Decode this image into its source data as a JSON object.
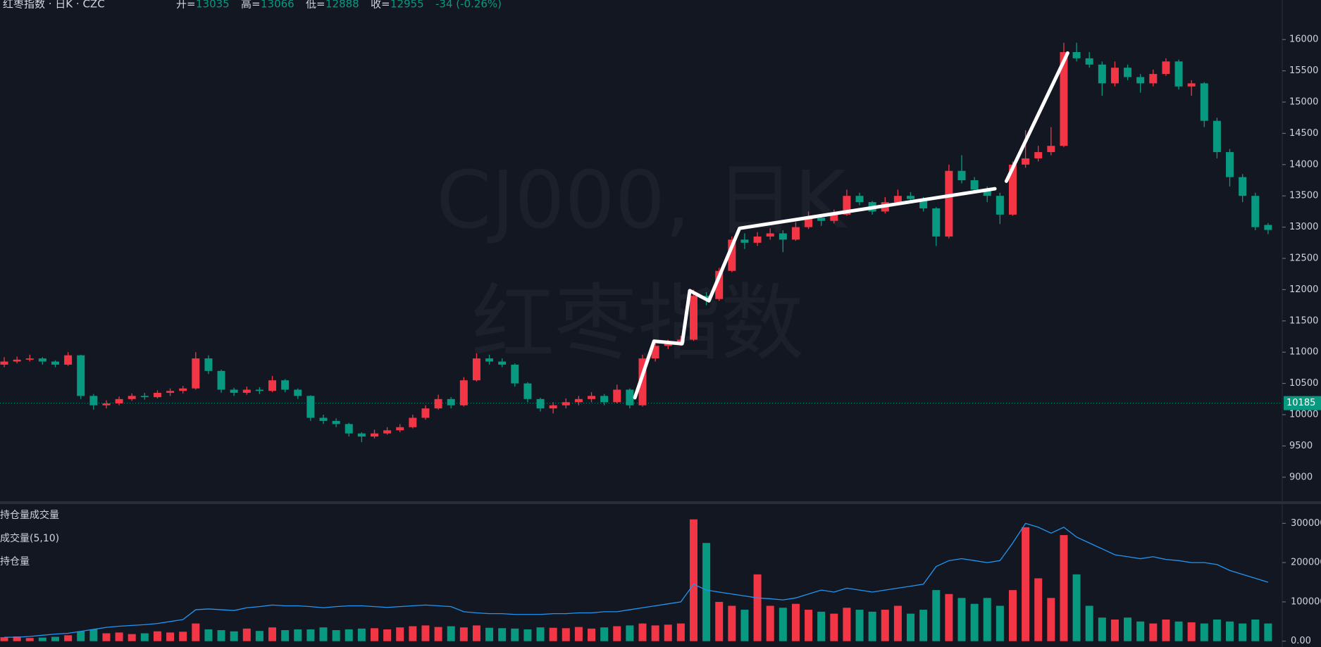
{
  "chart_data": {
    "type": "candlestick",
    "header": {
      "symbol": "红枣指数 · 日K · CZC",
      "open_label": "开=",
      "high_label": "高=",
      "low_label": "低=",
      "close_label": "收=",
      "change_label": "-34 (-0.26%)"
    },
    "watermark": [
      "CJ000, 日K",
      "红枣指数"
    ],
    "up_color": "#f23645",
    "down_color": "#089981",
    "ylim": [
      8615,
      16633
    ],
    "yticks": [
      16000,
      15500,
      15000,
      14500,
      14000,
      13500,
      13000,
      12500,
      12000,
      11500,
      11000,
      10500,
      10000,
      9500,
      9000
    ],
    "price_line": 10185,
    "ohlc": [
      [
        10800,
        10920,
        10760,
        10850
      ],
      [
        10850,
        10930,
        10820,
        10880
      ],
      [
        10880,
        10960,
        10850,
        10900
      ],
      [
        10900,
        10920,
        10800,
        10850
      ],
      [
        10850,
        10870,
        10760,
        10800
      ],
      [
        10800,
        11000,
        10780,
        10950
      ],
      [
        10950,
        10960,
        10250,
        10300
      ],
      [
        10300,
        10330,
        10080,
        10150
      ],
      [
        10150,
        10230,
        10100,
        10180
      ],
      [
        10180,
        10290,
        10150,
        10250
      ],
      [
        10250,
        10340,
        10220,
        10300
      ],
      [
        10300,
        10350,
        10240,
        10280
      ],
      [
        10280,
        10390,
        10260,
        10350
      ],
      [
        10350,
        10420,
        10300,
        10380
      ],
      [
        10380,
        10460,
        10340,
        10420
      ],
      [
        10420,
        11000,
        10400,
        10900
      ],
      [
        10900,
        10950,
        10650,
        10700
      ],
      [
        10700,
        10720,
        10350,
        10400
      ],
      [
        10400,
        10430,
        10300,
        10350
      ],
      [
        10350,
        10450,
        10320,
        10400
      ],
      [
        10400,
        10440,
        10330,
        10380
      ],
      [
        10380,
        10620,
        10360,
        10550
      ],
      [
        10550,
        10570,
        10360,
        10400
      ],
      [
        10400,
        10420,
        10250,
        10300
      ],
      [
        10300,
        10310,
        9900,
        9950
      ],
      [
        9950,
        10000,
        9850,
        9900
      ],
      [
        9900,
        9940,
        9800,
        9850
      ],
      [
        9850,
        9870,
        9650,
        9700
      ],
      [
        9700,
        9720,
        9560,
        9650
      ],
      [
        9650,
        9760,
        9620,
        9700
      ],
      [
        9700,
        9800,
        9680,
        9750
      ],
      [
        9750,
        9850,
        9720,
        9800
      ],
      [
        9800,
        10000,
        9780,
        9950
      ],
      [
        9950,
        10150,
        9920,
        10100
      ],
      [
        10100,
        10320,
        10080,
        10250
      ],
      [
        10250,
        10280,
        10100,
        10150
      ],
      [
        10150,
        10600,
        10130,
        10550
      ],
      [
        10550,
        10980,
        10530,
        10900
      ],
      [
        10900,
        10960,
        10800,
        10850
      ],
      [
        10850,
        10900,
        10760,
        10800
      ],
      [
        10800,
        10820,
        10450,
        10500
      ],
      [
        10500,
        10520,
        10200,
        10250
      ],
      [
        10250,
        10270,
        10050,
        10100
      ],
      [
        10100,
        10200,
        10020,
        10150
      ],
      [
        10150,
        10260,
        10100,
        10200
      ],
      [
        10200,
        10300,
        10150,
        10250
      ],
      [
        10250,
        10360,
        10200,
        10300
      ],
      [
        10300,
        10330,
        10150,
        10200
      ],
      [
        10200,
        10480,
        10180,
        10400
      ],
      [
        10400,
        10420,
        10100,
        10150
      ],
      [
        10150,
        10960,
        10130,
        10900
      ],
      [
        10900,
        11150,
        10850,
        11100
      ],
      [
        11100,
        11200,
        11050,
        11150
      ],
      [
        11150,
        11260,
        11100,
        11200
      ],
      [
        11200,
        12000,
        11180,
        11900
      ],
      [
        11900,
        11960,
        11750,
        11850
      ],
      [
        11850,
        12350,
        11820,
        12300
      ],
      [
        12300,
        12850,
        12280,
        12800
      ],
      [
        12800,
        12900,
        12650,
        12750
      ],
      [
        12750,
        12920,
        12700,
        12850
      ],
      [
        12850,
        12980,
        12800,
        12900
      ],
      [
        12900,
        12950,
        12600,
        12800
      ],
      [
        12800,
        13080,
        12780,
        13000
      ],
      [
        13000,
        13250,
        12970,
        13150
      ],
      [
        13150,
        13200,
        13020,
        13100
      ],
      [
        13100,
        13280,
        13060,
        13200
      ],
      [
        13200,
        13600,
        13180,
        13500
      ],
      [
        13500,
        13550,
        13350,
        13400
      ],
      [
        13400,
        13420,
        13200,
        13250
      ],
      [
        13250,
        13480,
        13220,
        13400
      ],
      [
        13400,
        13600,
        13380,
        13500
      ],
      [
        13500,
        13560,
        13400,
        13450
      ],
      [
        13450,
        13480,
        13250,
        13300
      ],
      [
        13300,
        13320,
        12700,
        12850
      ],
      [
        12850,
        14000,
        12820,
        13900
      ],
      [
        13900,
        14150,
        13700,
        13750
      ],
      [
        13750,
        13800,
        13550,
        13600
      ],
      [
        13600,
        13650,
        13400,
        13500
      ],
      [
        13500,
        13550,
        13050,
        13200
      ],
      [
        13200,
        14050,
        13180,
        14000
      ],
      [
        14000,
        14550,
        13950,
        14100
      ],
      [
        14100,
        14300,
        14050,
        14200
      ],
      [
        14200,
        14600,
        14150,
        14300
      ],
      [
        14300,
        15950,
        14280,
        15800
      ],
      [
        15800,
        15950,
        15650,
        15700
      ],
      [
        15700,
        15800,
        15550,
        15600
      ],
      [
        15600,
        15650,
        15100,
        15300
      ],
      [
        15300,
        15650,
        15250,
        15550
      ],
      [
        15550,
        15600,
        15350,
        15400
      ],
      [
        15400,
        15450,
        15150,
        15300
      ],
      [
        15300,
        15520,
        15250,
        15450
      ],
      [
        15450,
        15700,
        15420,
        15650
      ],
      [
        15650,
        15680,
        15200,
        15250
      ],
      [
        15250,
        15350,
        15100,
        15300
      ],
      [
        15300,
        15320,
        14600,
        14700
      ],
      [
        14700,
        14750,
        14100,
        14200
      ],
      [
        14200,
        14250,
        13650,
        13800
      ],
      [
        13800,
        13850,
        13400,
        13500
      ],
      [
        13500,
        13550,
        12950,
        13000
      ],
      [
        13035,
        13066,
        12888,
        12955
      ]
    ],
    "drawings": [
      {
        "x": [
          49.4,
          50.9,
          53.1,
          53.7,
          55.2,
          57.6,
          77.6
        ],
        "y": [
          10272,
          11175,
          11135,
          11984,
          11822,
          12981,
          13614
        ]
      },
      {
        "x": [
          78.5,
          83.3
        ],
        "y": [
          13735,
          15784
        ]
      }
    ],
    "lower_panel": {
      "labels": [
        "持仓量成交量",
        "成交量(5,10)",
        "持仓量"
      ],
      "ylim": [
        -14900,
        349000
      ],
      "yticks": [
        300000,
        200000,
        100000,
        {
          "value": 0,
          "label": "0.00"
        }
      ],
      "oi_color": "#2196f3",
      "volume": [
        10000,
        12000,
        8000,
        9000,
        11000,
        15000,
        25000,
        30000,
        20000,
        22000,
        18000,
        20000,
        25000,
        22000,
        24000,
        45000,
        30000,
        28000,
        25000,
        32000,
        26000,
        35000,
        28000,
        30000,
        30000,
        35000,
        28000,
        30000,
        32000,
        33000,
        30000,
        35000,
        38000,
        40000,
        36000,
        38000,
        35000,
        40000,
        34000,
        33000,
        32000,
        30000,
        35000,
        34000,
        33000,
        36000,
        32000,
        35000,
        38000,
        40000,
        45000,
        40000,
        42000,
        45000,
        310000,
        250000,
        100000,
        90000,
        80000,
        170000,
        90000,
        85000,
        95000,
        80000,
        75000,
        70000,
        85000,
        80000,
        75000,
        80000,
        90000,
        70000,
        80000,
        130000,
        120000,
        110000,
        95000,
        110000,
        90000,
        130000,
        290000,
        160000,
        110000,
        270000,
        170000,
        90000,
        60000,
        55000,
        60000,
        50000,
        45000,
        55000,
        50000,
        48000,
        45000,
        55000,
        50000,
        45000,
        55000,
        45000
      ],
      "open_interest": [
        10000,
        10000,
        12000,
        15000,
        18000,
        20000,
        25000,
        30000,
        35000,
        38000,
        40000,
        42000,
        45000,
        50000,
        55000,
        80000,
        82000,
        80000,
        78000,
        85000,
        88000,
        92000,
        90000,
        90000,
        88000,
        85000,
        88000,
        90000,
        90000,
        88000,
        86000,
        88000,
        90000,
        92000,
        90000,
        88000,
        75000,
        72000,
        70000,
        70000,
        68000,
        68000,
        68000,
        70000,
        70000,
        72000,
        72000,
        75000,
        75000,
        80000,
        85000,
        90000,
        95000,
        100000,
        145000,
        130000,
        125000,
        120000,
        115000,
        110000,
        108000,
        105000,
        110000,
        120000,
        130000,
        125000,
        135000,
        130000,
        125000,
        130000,
        135000,
        140000,
        145000,
        190000,
        205000,
        210000,
        205000,
        200000,
        205000,
        250000,
        300000,
        290000,
        275000,
        290000,
        265000,
        250000,
        235000,
        220000,
        215000,
        210000,
        215000,
        208000,
        205000,
        200000,
        200000,
        195000,
        180000,
        170000,
        160000,
        150000
      ]
    }
  }
}
